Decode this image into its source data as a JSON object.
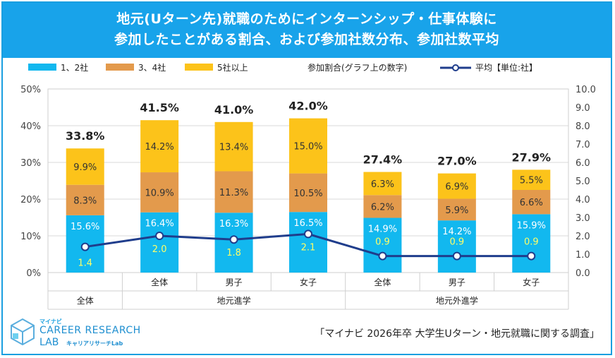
{
  "title": {
    "line1": "地元(Uターン先)就職のためにインターンシップ・仕事体験に",
    "line2": "参加したことがある割合、および参加社数分布、参加社数平均"
  },
  "legend": {
    "s1": "1、2社",
    "s2": "3、4社",
    "s3": "5社以上",
    "note": "参加割合(グラフ上の数字)",
    "avg": "平均【単位:社】"
  },
  "colors": {
    "s1": "#12b8ef",
    "s2": "#e39a4c",
    "s3": "#fcc31a",
    "avg": "#1f3d8c",
    "title_band": "#18a3ea"
  },
  "chart_data": {
    "type": "bar",
    "stacked": true,
    "categories": [
      "全体",
      "全体",
      "男子",
      "女子",
      "全体",
      "男子",
      "女子"
    ],
    "groups": [
      {
        "label": "全体",
        "span": [
          0,
          0
        ]
      },
      {
        "label": "地元進学",
        "span": [
          1,
          3
        ]
      },
      {
        "label": "地元外進学",
        "span": [
          4,
          6
        ]
      }
    ],
    "series": [
      {
        "name": "1、2社",
        "values": [
          15.6,
          16.4,
          16.3,
          16.5,
          14.9,
          14.2,
          15.9
        ]
      },
      {
        "name": "3、4社",
        "values": [
          8.3,
          10.9,
          11.3,
          10.5,
          6.2,
          5.9,
          6.6
        ]
      },
      {
        "name": "5社以上",
        "values": [
          9.9,
          14.2,
          13.4,
          15.0,
          6.3,
          6.9,
          5.5
        ]
      }
    ],
    "totals": [
      33.8,
      41.5,
      41.0,
      42.0,
      27.4,
      27.0,
      27.9
    ],
    "line_series": {
      "name": "平均【単位:社】",
      "values": [
        1.4,
        2.0,
        1.8,
        2.1,
        0.9,
        0.9,
        0.9
      ]
    },
    "y_left": {
      "min": 0,
      "max": 50,
      "ticks": [
        "0%",
        "10%",
        "20%",
        "30%",
        "40%",
        "50%"
      ]
    },
    "y_right": {
      "min": 0,
      "max": 10,
      "ticks": [
        "0.0",
        "1.0",
        "2.0",
        "3.0",
        "4.0",
        "5.0",
        "6.0",
        "7.0",
        "8.0",
        "9.0",
        "10.0"
      ]
    }
  },
  "logo": {
    "small": "マイナビ",
    "line1": "CAREER RESEARCH",
    "line2": "LAB",
    "kana": "キャリアリサーチLab"
  },
  "source": "「マイナビ 2026年卒 大学生Uターン・地元就職に関する調査」"
}
